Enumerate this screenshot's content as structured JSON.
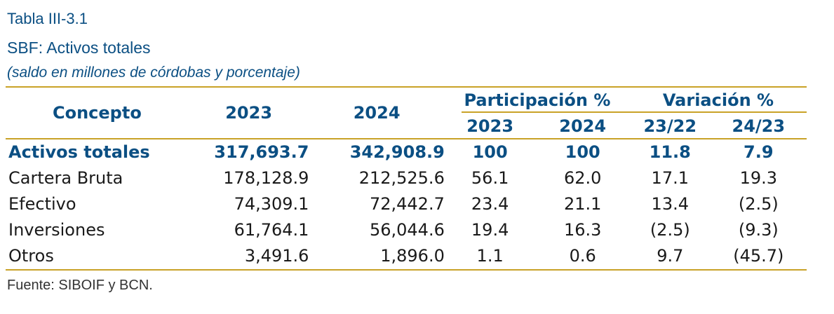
{
  "header": {
    "label": "Tabla III-3.1",
    "title": "SBF: Activos totales",
    "subtitle": "(saldo en millones de córdobas y porcentaje)"
  },
  "table": {
    "col_concept": "Concepto",
    "col_2023": "2023",
    "col_2024": "2024",
    "group_participation": "Participación %",
    "group_variation": "Variación %",
    "sub_part_2023": "2023",
    "sub_part_2024": "2024",
    "sub_var_2322": "23/22",
    "sub_var_2423": "24/23",
    "rows": [
      [
        "Activos totales",
        "317,693.7",
        "342,908.9",
        "100",
        "100",
        "11.8",
        "7.9"
      ],
      [
        "Cartera Bruta",
        "178,128.9",
        "212,525.6",
        "56.1",
        "62.0",
        "17.1",
        "19.3"
      ],
      [
        "Efectivo",
        "74,309.1",
        "72,442.7",
        "23.4",
        "21.1",
        "13.4",
        "(2.5)"
      ],
      [
        "Inversiones",
        "61,764.1",
        "56,044.6",
        "19.4",
        "16.3",
        "(2.5)",
        "(9.3)"
      ],
      [
        "Otros",
        "3,491.6",
        "1,896.0",
        "1.1",
        "0.6",
        "9.7",
        "(45.7)"
      ]
    ]
  },
  "source": "Fuente: SIBOIF y BCN.",
  "colors": {
    "accent": "#0b4f83",
    "rule": "#c9a227"
  }
}
